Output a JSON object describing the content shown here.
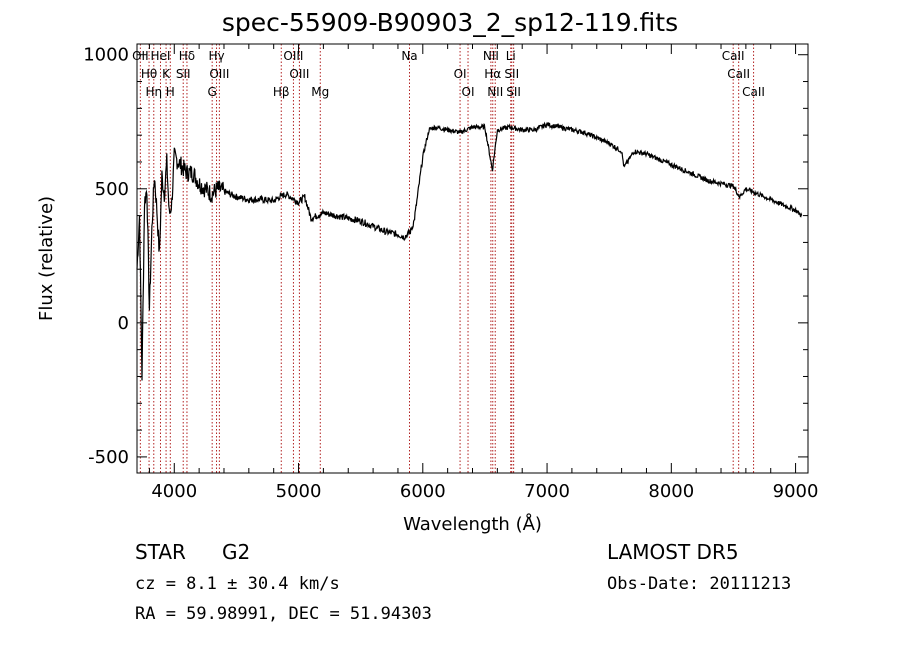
{
  "title": "spec-55909-B90903_2_sp12-119.fits",
  "footer": {
    "class": "STAR",
    "subclass": "G2",
    "cz": "cz = 8.1 ± 30.4 km/s",
    "coords": "RA =  59.98991, DEC =  51.94303",
    "survey": "LAMOST DR5",
    "obs_date": "Obs-Date: 20111213"
  },
  "chart_data": {
    "type": "line",
    "title": "spec-55909-B90903_2_sp12-119.fits",
    "xlabel": "Wavelength (Å)",
    "ylabel": "Flux (relative)",
    "xlim": [
      3700,
      9100
    ],
    "ylim": [
      -560,
      1040
    ],
    "xticks": [
      "4000",
      "5000",
      "6000",
      "7000",
      "8000",
      "9000"
    ],
    "yticks": [
      "-500",
      "0",
      "500",
      "1000"
    ],
    "xtick_values": [
      4000,
      5000,
      6000,
      7000,
      8000,
      9000
    ],
    "ytick_values": [
      -500,
      0,
      500,
      1000
    ],
    "grid": false,
    "line_color": "#000000",
    "marker_color": "#b22222",
    "series": [
      {
        "x": [
          3700,
          3720,
          3740,
          3760,
          3780,
          3800,
          3820,
          3840,
          3860,
          3880,
          3900,
          3920,
          3940,
          3960,
          3980,
          4000,
          4050,
          4100,
          4150,
          4200,
          4250,
          4300,
          4350,
          4400,
          4500,
          4600,
          4700,
          4800,
          4850,
          4900,
          5000,
          5050,
          5100,
          5200,
          5300,
          5400,
          5500,
          5600,
          5700,
          5800,
          5850,
          5900,
          5930,
          5960,
          6000,
          6050,
          6100,
          6200,
          6300,
          6400,
          6500,
          6560,
          6600,
          6700,
          6800,
          6900,
          7000,
          7100,
          7200,
          7300,
          7400,
          7500,
          7600,
          7620,
          7700,
          7800,
          7900,
          8000,
          8100,
          8200,
          8300,
          8400,
          8500,
          8550,
          8600,
          8700,
          8800,
          8900,
          9000,
          9050
        ],
        "y": [
          200,
          400,
          -200,
          450,
          500,
          50,
          350,
          550,
          420,
          250,
          550,
          480,
          600,
          400,
          450,
          620,
          590,
          560,
          560,
          520,
          500,
          480,
          500,
          490,
          470,
          460,
          460,
          455,
          470,
          480,
          450,
          470,
          390,
          410,
          400,
          390,
          380,
          360,
          340,
          330,
          320,
          340,
          380,
          480,
          620,
          720,
          730,
          720,
          710,
          730,
          730,
          570,
          720,
          730,
          720,
          720,
          740,
          730,
          720,
          710,
          690,
          670,
          640,
          580,
          640,
          630,
          610,
          590,
          570,
          550,
          530,
          520,
          510,
          470,
          500,
          480,
          460,
          440,
          420,
          400
        ]
      }
    ],
    "lines": [
      {
        "label": "OII",
        "x": 3727
      },
      {
        "label": "Hθ",
        "x": 3797
      },
      {
        "label": "Hη",
        "x": 3835
      },
      {
        "label": "HeI",
        "x": 3889
      },
      {
        "label": "K",
        "x": 3934
      },
      {
        "label": "H",
        "x": 3968
      },
      {
        "label": "Hδ",
        "x": 4102
      },
      {
        "label": "SII",
        "x": 4072
      },
      {
        "label": "G",
        "x": 4305
      },
      {
        "label": "Hγ",
        "x": 4340
      },
      {
        "label": "OIII",
        "x": 4363
      },
      {
        "label": "Hβ",
        "x": 4861
      },
      {
        "label": "OIII",
        "x": 4959
      },
      {
        "label": "OIII",
        "x": 5007
      },
      {
        "label": "Mg",
        "x": 5175
      },
      {
        "label": "Na",
        "x": 5893
      },
      {
        "label": "OI",
        "x": 6300
      },
      {
        "label": "OI",
        "x": 6364
      },
      {
        "label": "NII",
        "x": 6548
      },
      {
        "label": "Hα",
        "x": 6563
      },
      {
        "label": "NII",
        "x": 6583
      },
      {
        "label": "Li",
        "x": 6708
      },
      {
        "label": "SII",
        "x": 6716
      },
      {
        "label": "SII",
        "x": 6731
      },
      {
        "label": "CaII",
        "x": 8498
      },
      {
        "label": "CaII",
        "x": 8542
      },
      {
        "label": "CaII",
        "x": 8662
      }
    ]
  }
}
